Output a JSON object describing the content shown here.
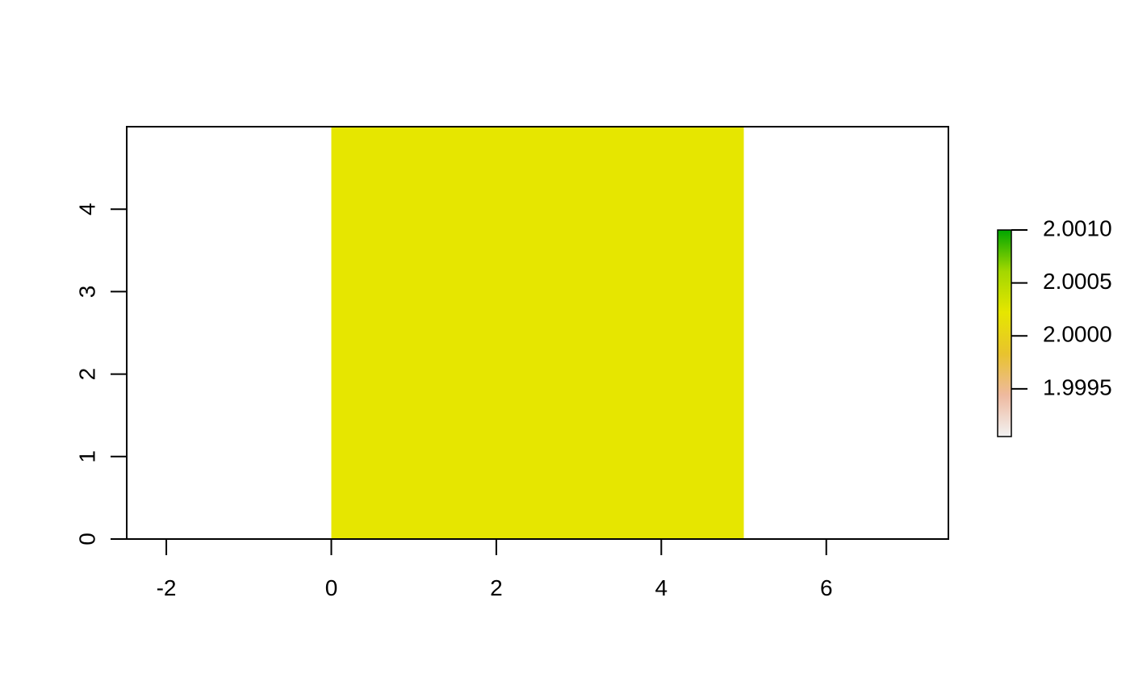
{
  "chart_data": {
    "type": "heatmap",
    "title": "",
    "xlabel": "",
    "ylabel": "",
    "xlim": [
      -2.48,
      7.48
    ],
    "ylim": [
      0,
      5
    ],
    "x_ticks": [
      -2,
      0,
      2,
      4,
      6
    ],
    "x_tick_labels": [
      "-2",
      "0",
      "2",
      "4",
      "6"
    ],
    "y_ticks": [
      0,
      1,
      2,
      3,
      4
    ],
    "y_tick_labels": [
      "0",
      "1",
      "2",
      "3",
      "4"
    ],
    "cells": [
      {
        "xmin": 0,
        "xmax": 5,
        "ymin": 0,
        "ymax": 5,
        "value": 2.0,
        "color": "#E6E600"
      }
    ],
    "grid": false,
    "legend": {
      "placement": "right",
      "min": 1.99905,
      "max": 2.001,
      "ticks": [
        2.001,
        2.0005,
        2.0,
        1.9995
      ],
      "tick_labels": [
        "2.0010",
        "2.0005",
        "2.0000",
        "1.9995"
      ],
      "colors": [
        "#F2F2F2",
        "#EEB99F",
        "#E8C32E",
        "#E6E600",
        "#A3D700",
        "#00A600"
      ]
    }
  }
}
